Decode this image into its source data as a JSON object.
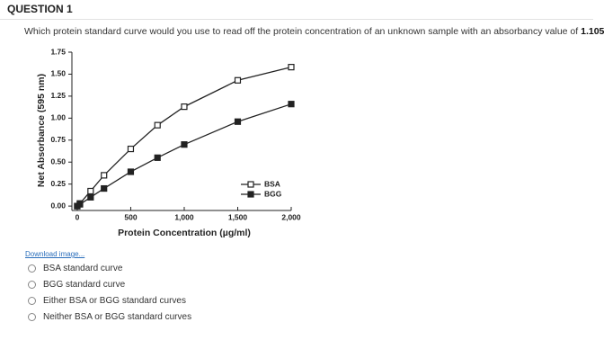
{
  "header": {
    "title": "QUESTION 1"
  },
  "question": {
    "text": "Which protein standard curve would you use to read off the protein concentration of an unknown sample with an absorbancy value of ",
    "emphasis": "1.105"
  },
  "chart_data": {
    "type": "line",
    "x_label": "Protein Concentration (µg/ml)",
    "y_label": "Net Absorbance (595 nm)",
    "x": [
      0,
      25,
      125,
      250,
      500,
      750,
      1000,
      1500,
      2000
    ],
    "series": [
      {
        "name": "BSA",
        "color": "#222222",
        "marker": "open-square",
        "values": [
          0,
          0.03,
          0.17,
          0.35,
          0.65,
          0.92,
          1.13,
          1.43,
          1.58
        ]
      },
      {
        "name": "BGG",
        "color": "#222222",
        "marker": "filled-square",
        "values": [
          0,
          0.02,
          0.1,
          0.2,
          0.39,
          0.55,
          0.7,
          0.96,
          1.16
        ]
      }
    ],
    "xlim": [
      -50,
      2000
    ],
    "ylim": [
      -0.05,
      1.75
    ],
    "xticks": [
      0,
      500,
      {
        "value": 1000,
        "label": "1,000"
      },
      {
        "value": 1500,
        "label": "1,500"
      },
      {
        "value": 2000,
        "label": "2,000"
      }
    ],
    "yticks": [
      {
        "value": 0,
        "label": "0.00"
      },
      0.25,
      {
        "value": 0.5,
        "label": "0.50"
      },
      0.75,
      {
        "value": 1,
        "label": "1.00"
      },
      1.25,
      {
        "value": 1.5,
        "label": "1.50"
      },
      1.75
    ],
    "grid": false,
    "legend": "lower-right"
  },
  "link": "Download image...",
  "options": [
    "BSA standard curve",
    "BGG standard curve",
    "Either BSA or BGG standard curves",
    "Neither BSA or BGG standard curves"
  ]
}
